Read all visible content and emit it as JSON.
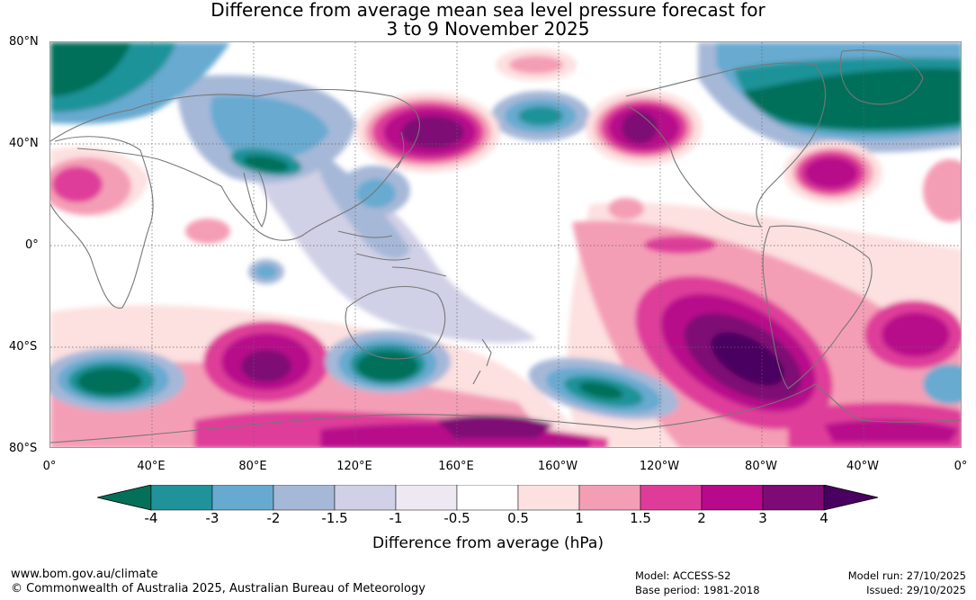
{
  "title_line1": "Difference from average mean sea level pressure forecast for",
  "title_line2": "3 to 9 November 2025",
  "lat_labels": [
    "80°N",
    "40°N",
    "0°",
    "40°S",
    "80°S"
  ],
  "lon_labels": [
    "0°",
    "40°E",
    "80°E",
    "120°E",
    "160°E",
    "160°W",
    "120°W",
    "80°W",
    "40°W",
    "0°"
  ],
  "colorbar": {
    "ticks": [
      "-4",
      "-3",
      "-2",
      "-1.5",
      "-1",
      "-0.5",
      "0.5",
      "1",
      "1.5",
      "2",
      "3",
      "4"
    ],
    "colors": [
      "#04705a",
      "#1f9399",
      "#67aad0",
      "#a6b8d8",
      "#d0d0e6",
      "#ede8f2",
      "#ffffff",
      "#fde0e0",
      "#f49eb6",
      "#df3c9a",
      "#b8088b",
      "#7e0a75",
      "#4a0060"
    ],
    "label": "Difference from average (hPa)"
  },
  "footer": {
    "url": "www.bom.gov.au/climate",
    "copyright": "© Commonwealth of Australia 2025, Australian Bureau of Meteorology",
    "model": "Model: ACCESS-S2",
    "base_period": "Base period: 1981-2018",
    "model_run": "Model run: 27/10/2025",
    "issued": "Issued: 29/10/2025"
  }
}
